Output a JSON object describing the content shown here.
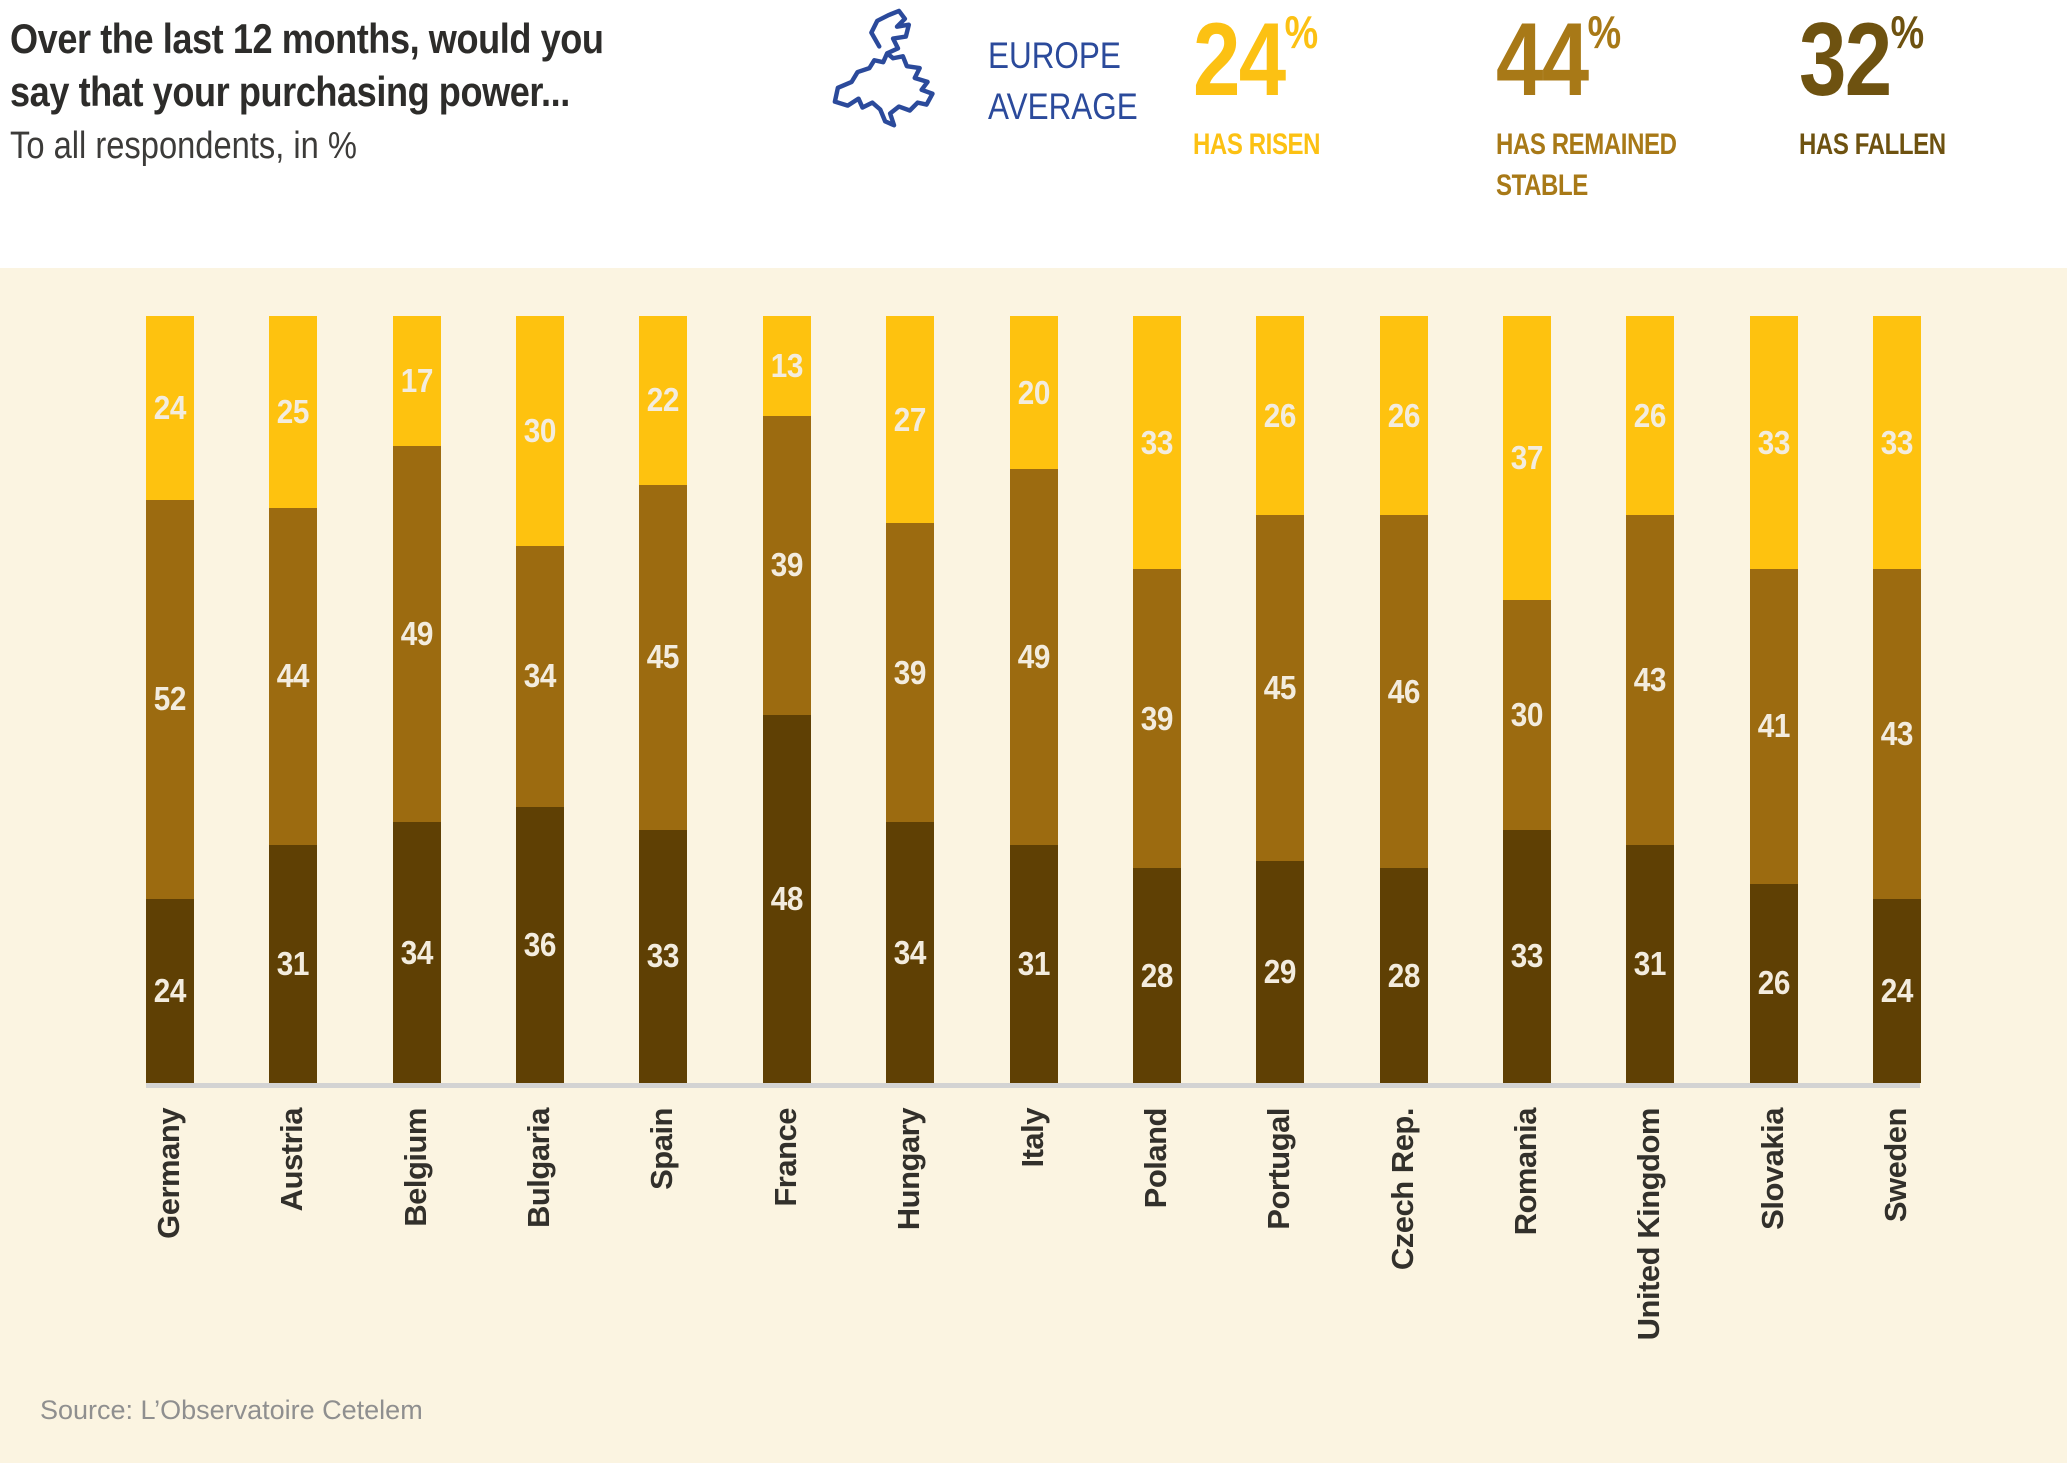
{
  "header": {
    "title_line1": "Over the last 12 months, would you",
    "title_line2": "say that your purchasing power...",
    "subtitle": "To all respondents, in %",
    "europe_label_line1": "EUROPE",
    "europe_label_line2": "AVERAGE",
    "europe_icon": "europe-map-outline",
    "europe_color": "#2b4a9b",
    "stats": [
      {
        "value": "24",
        "percent_sign": "%",
        "label": "HAS RISEN",
        "color": "#fcc113"
      },
      {
        "value": "44",
        "percent_sign": "%",
        "label": "HAS REMAINED STABLE",
        "color": "#a87917"
      },
      {
        "value": "32",
        "percent_sign": "%",
        "label": "HAS FALLEN",
        "color": "#6e5210"
      }
    ]
  },
  "chart_data": {
    "type": "bar",
    "stacked": true,
    "percent_stacked": true,
    "unit": "%",
    "grid": false,
    "ylim": [
      0,
      100
    ],
    "value_labels": "inside",
    "background_color": "#fbf4e1",
    "categories": [
      "Germany",
      "Austria",
      "Belgium",
      "Bulgaria",
      "Spain",
      "France",
      "Hungary",
      "Italy",
      "Poland",
      "Portugal",
      "Czech Rep.",
      "Romania",
      "United Kingdom",
      "Slovakia",
      "Sweden"
    ],
    "series": [
      {
        "name": "Has risen",
        "position": "top",
        "color": "#fec20f",
        "values": [
          24,
          25,
          17,
          30,
          22,
          13,
          27,
          20,
          33,
          26,
          26,
          37,
          26,
          33,
          33
        ]
      },
      {
        "name": "Has remained stable",
        "position": "middle",
        "color": "#9c6b10",
        "values": [
          52,
          44,
          49,
          34,
          45,
          39,
          39,
          49,
          39,
          45,
          46,
          30,
          43,
          41,
          43
        ]
      },
      {
        "name": "Has fallen",
        "position": "bottom",
        "color": "#5f4004",
        "values": [
          24,
          31,
          34,
          36,
          33,
          48,
          34,
          31,
          28,
          29,
          28,
          33,
          31,
          26,
          24
        ]
      }
    ]
  },
  "footer": {
    "source": "Source: L’Observatoire Cetelem"
  }
}
